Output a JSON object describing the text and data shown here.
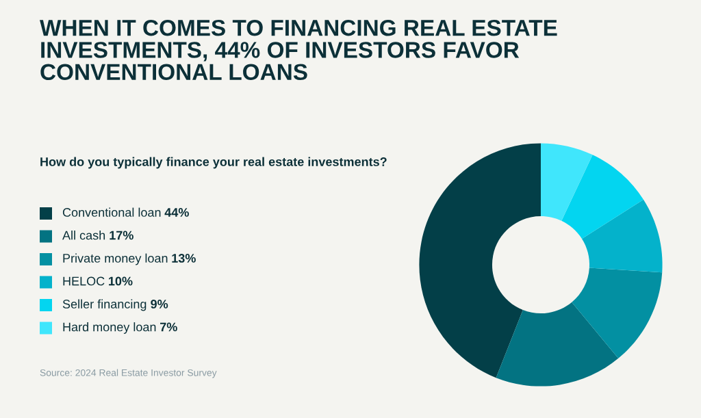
{
  "chart_data": {
    "type": "donut",
    "title": "WHEN IT COMES TO FINANCING REAL ESTATE INVESTMENTS, 44% OF INVESTORS FAVOR CONVENTIONAL LOANS",
    "subtitle": "How do you typically finance your real estate investments?",
    "categories": [
      "Conventional loan",
      "All cash",
      "Private money loan",
      "HELOC",
      "Seller financing",
      "Hard money loan"
    ],
    "values": [
      44,
      17,
      13,
      10,
      9,
      7
    ],
    "value_labels": [
      "44%",
      "17%",
      "13%",
      "10%",
      "9%",
      "7%"
    ],
    "colors": [
      "#033f48",
      "#037382",
      "#0390a2",
      "#04b2cb",
      "#03d5f0",
      "#40e6fc"
    ],
    "legend": "left",
    "annotations": [
      "Source: 2024 Real Estate Investor Survey"
    ]
  }
}
